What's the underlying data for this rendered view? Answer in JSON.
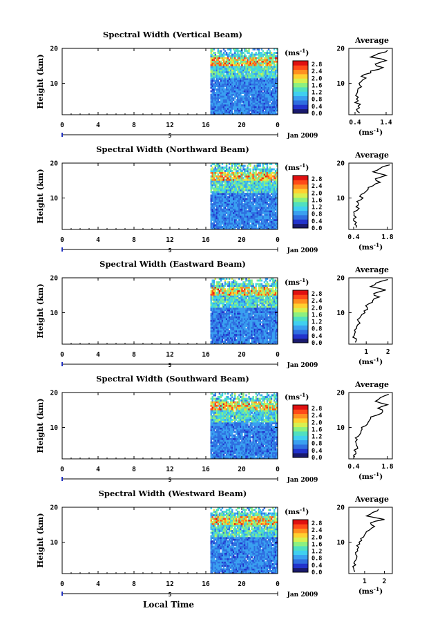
{
  "figure": {
    "xlabel": "Local Time",
    "date_label": "Jan 2009",
    "colorbar_unit": "(ms",
    "colorbar_unit_exp": "-1",
    "colorbar_unit_close": ")",
    "average_title": "Average",
    "average_unit": "(ms",
    "average_unit_exp": "-1",
    "average_unit_close": ")",
    "day_marker": "5",
    "colormap": [
      "#1a1a6e",
      "#2233cc",
      "#2f6fe0",
      "#3aa0f0",
      "#40d0f0",
      "#50e0c0",
      "#8cf080",
      "#d8f050",
      "#ffd030",
      "#ff9020",
      "#ff4a18",
      "#e01010"
    ]
  },
  "chart_data": [
    {
      "type": "heatmap",
      "title": "Spectral Width (Vertical Beam)",
      "ylabel": "Height (km)",
      "x_ticks": [
        "0",
        "4",
        "8",
        "12",
        "16",
        "20",
        "0"
      ],
      "xlim": [
        0,
        24
      ],
      "y_ticks": [
        "10",
        "20"
      ],
      "ylim": [
        1,
        20
      ],
      "data_x_start": 16.5,
      "colorbar_ticks": [
        "0.0",
        "0.4",
        "0.8",
        "1.2",
        "1.6",
        "2.0",
        "2.4",
        "2.8"
      ],
      "colorbar_range": [
        0,
        3.0
      ],
      "average": {
        "title": "Average",
        "x_ticks": [
          "0.4",
          "1.4"
        ],
        "xlim": [
          0.2,
          1.6
        ],
        "y_ticks": [
          "10",
          "20"
        ],
        "height_km": [
          1.5,
          2.5,
          3.5,
          4.5,
          5.5,
          6.5,
          7.5,
          8.5,
          9.5,
          10.5,
          11.5,
          12.5,
          13.5,
          14.5,
          15.5,
          16.5,
          17.5,
          18.5,
          19.5
        ],
        "width_ms": [
          0.55,
          0.45,
          0.5,
          0.4,
          0.45,
          0.42,
          0.48,
          0.5,
          0.55,
          0.6,
          0.75,
          0.7,
          0.9,
          1.3,
          1.05,
          1.4,
          0.9,
          1.15,
          1.45
        ]
      }
    },
    {
      "type": "heatmap",
      "title": "Spectral Width (Northward Beam)",
      "ylabel": "Height (km)",
      "x_ticks": [
        "0",
        "4",
        "8",
        "12",
        "16",
        "20",
        "0"
      ],
      "xlim": [
        0,
        24
      ],
      "y_ticks": [
        "10",
        "20"
      ],
      "ylim": [
        1,
        20
      ],
      "data_x_start": 16.5,
      "colorbar_ticks": [
        "0.0",
        "0.4",
        "0.8",
        "1.2",
        "1.6",
        "2.0",
        "2.4",
        "2.8"
      ],
      "colorbar_range": [
        0,
        3.0
      ],
      "average": {
        "title": "Average",
        "x_ticks": [
          "0.4",
          "1.8"
        ],
        "xlim": [
          0.2,
          2.0
        ],
        "y_ticks": [
          "10",
          "20"
        ],
        "height_km": [
          1.5,
          2.5,
          3.5,
          4.5,
          5.5,
          6.5,
          7.5,
          8.5,
          9.5,
          10.5,
          11.5,
          12.5,
          13.5,
          14.5,
          15.5,
          16.5,
          17.5,
          18.5,
          19.5
        ],
        "width_ms": [
          0.5,
          0.45,
          0.4,
          0.5,
          0.42,
          0.55,
          0.5,
          0.6,
          0.7,
          0.65,
          0.85,
          1.0,
          1.2,
          1.5,
          1.3,
          1.75,
          1.2,
          1.5,
          1.9
        ]
      }
    },
    {
      "type": "heatmap",
      "title": "Spectral Width (Eastward Beam)",
      "ylabel": "Height (km)",
      "x_ticks": [
        "0",
        "4",
        "8",
        "12",
        "16",
        "20",
        "0"
      ],
      "xlim": [
        0,
        24
      ],
      "y_ticks": [
        "10",
        "20"
      ],
      "ylim": [
        1,
        20
      ],
      "data_x_start": 16.5,
      "colorbar_ticks": [
        "0.0",
        "0.4",
        "0.8",
        "1.2",
        "1.6",
        "2.0",
        "2.4",
        "2.8"
      ],
      "colorbar_range": [
        0,
        3.0
      ],
      "average": {
        "title": "Average",
        "x_ticks": [
          "1",
          "2"
        ],
        "xlim": [
          0.2,
          2.2
        ],
        "y_ticks": [
          "10",
          "20"
        ],
        "height_km": [
          1.5,
          2.5,
          3.5,
          4.5,
          5.5,
          6.5,
          7.5,
          8.5,
          9.5,
          10.5,
          11.5,
          12.5,
          13.5,
          14.5,
          15.5,
          16.5,
          17.5,
          18.5,
          19.5
        ],
        "width_ms": [
          0.5,
          0.55,
          0.45,
          0.5,
          0.55,
          0.6,
          0.65,
          0.7,
          0.8,
          0.9,
          1.05,
          1.1,
          1.3,
          1.6,
          1.35,
          1.9,
          1.2,
          1.45,
          2.0
        ]
      }
    },
    {
      "type": "heatmap",
      "title": "Spectral Width (Southward Beam)",
      "ylabel": "Height (km)",
      "x_ticks": [
        "0",
        "4",
        "8",
        "12",
        "16",
        "20",
        "0"
      ],
      "xlim": [
        0,
        24
      ],
      "y_ticks": [
        "10",
        "20"
      ],
      "ylim": [
        1,
        20
      ],
      "data_x_start": 16.5,
      "colorbar_ticks": [
        "0.0",
        "0.4",
        "0.8",
        "1.2",
        "1.6",
        "2.0",
        "2.4",
        "2.8"
      ],
      "colorbar_range": [
        0,
        3.0
      ],
      "average": {
        "title": "Average",
        "x_ticks": [
          "0.4",
          "1.8"
        ],
        "xlim": [
          0.2,
          2.0
        ],
        "y_ticks": [
          "10",
          "20"
        ],
        "height_km": [
          1.5,
          2.5,
          3.5,
          4.5,
          5.5,
          6.5,
          7.5,
          8.5,
          9.5,
          10.5,
          11.5,
          12.5,
          13.5,
          14.5,
          15.5,
          16.5,
          17.5,
          18.5,
          19.5
        ],
        "width_ms": [
          0.45,
          0.5,
          0.42,
          0.55,
          0.5,
          0.55,
          0.6,
          0.7,
          0.75,
          0.9,
          1.0,
          1.1,
          1.35,
          1.6,
          1.4,
          1.8,
          1.3,
          1.5,
          1.85
        ]
      }
    },
    {
      "type": "heatmap",
      "title": "Spectral Width (Westward Beam)",
      "ylabel": "Height (km)",
      "x_ticks": [
        "0",
        "4",
        "8",
        "12",
        "16",
        "20",
        "0"
      ],
      "xlim": [
        0,
        24
      ],
      "y_ticks": [
        "10",
        "20"
      ],
      "ylim": [
        1,
        20
      ],
      "data_x_start": 16.5,
      "colorbar_ticks": [
        "0.0",
        "0.4",
        "0.8",
        "1.2",
        "1.6",
        "2.0",
        "2.4",
        "2.8"
      ],
      "colorbar_range": [
        0,
        3.0
      ],
      "average": {
        "title": "Average",
        "x_ticks": [
          "1",
          "2"
        ],
        "xlim": [
          0.2,
          2.4
        ],
        "y_ticks": [
          "10",
          "20"
        ],
        "height_km": [
          1.5,
          2.5,
          3.5,
          4.5,
          5.5,
          6.5,
          7.5,
          8.5,
          9.5,
          10.5,
          11.5,
          12.5,
          13.5,
          14.5,
          15.5,
          16.5,
          17.5,
          18.5,
          19.5
        ],
        "width_ms": [
          0.5,
          0.45,
          0.55,
          0.5,
          0.6,
          0.55,
          0.65,
          0.7,
          0.75,
          0.85,
          0.95,
          1.05,
          1.25,
          1.5,
          1.3,
          2.0,
          1.1,
          1.4,
          1.7
        ]
      }
    }
  ]
}
